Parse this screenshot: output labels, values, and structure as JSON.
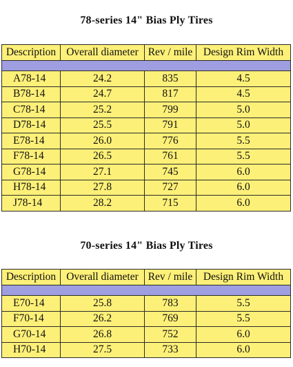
{
  "table1": {
    "title": "78-series 14\" Bias Ply Tires",
    "headers": [
      "Description",
      "Overall diameter",
      "Rev / mile",
      "Design Rim Width"
    ],
    "rows": [
      [
        "A78-14",
        "24.2",
        "835",
        "4.5"
      ],
      [
        "B78-14",
        "24.7",
        "817",
        "4.5"
      ],
      [
        "C78-14",
        "25.2",
        "799",
        "5.0"
      ],
      [
        "D78-14",
        "25.5",
        "791",
        "5.0"
      ],
      [
        "E78-14",
        "26.0",
        "776",
        "5.5"
      ],
      [
        "F78-14",
        "26.5",
        "761",
        "5.5"
      ],
      [
        "G78-14",
        "27.1",
        "745",
        "6.0"
      ],
      [
        "H78-14",
        "27.8",
        "727",
        "6.0"
      ],
      [
        "J78-14",
        "28.2",
        "715",
        "6.0"
      ]
    ]
  },
  "table2": {
    "title": "70-series 14\" Bias Ply Tires",
    "headers": [
      "Description",
      "Overall diameter",
      "Rev / mile",
      "Design Rim Width"
    ],
    "rows": [
      [
        "E70-14",
        "25.8",
        "783",
        "5.5"
      ],
      [
        "F70-14",
        "26.2",
        "769",
        "5.5"
      ],
      [
        "G70-14",
        "26.8",
        "752",
        "6.0"
      ],
      [
        "H70-14",
        "27.5",
        "733",
        "6.0"
      ]
    ]
  },
  "colors": {
    "cell_background": "#fdf078",
    "band": "#9e9ee0",
    "border": "#2a2a2a"
  }
}
